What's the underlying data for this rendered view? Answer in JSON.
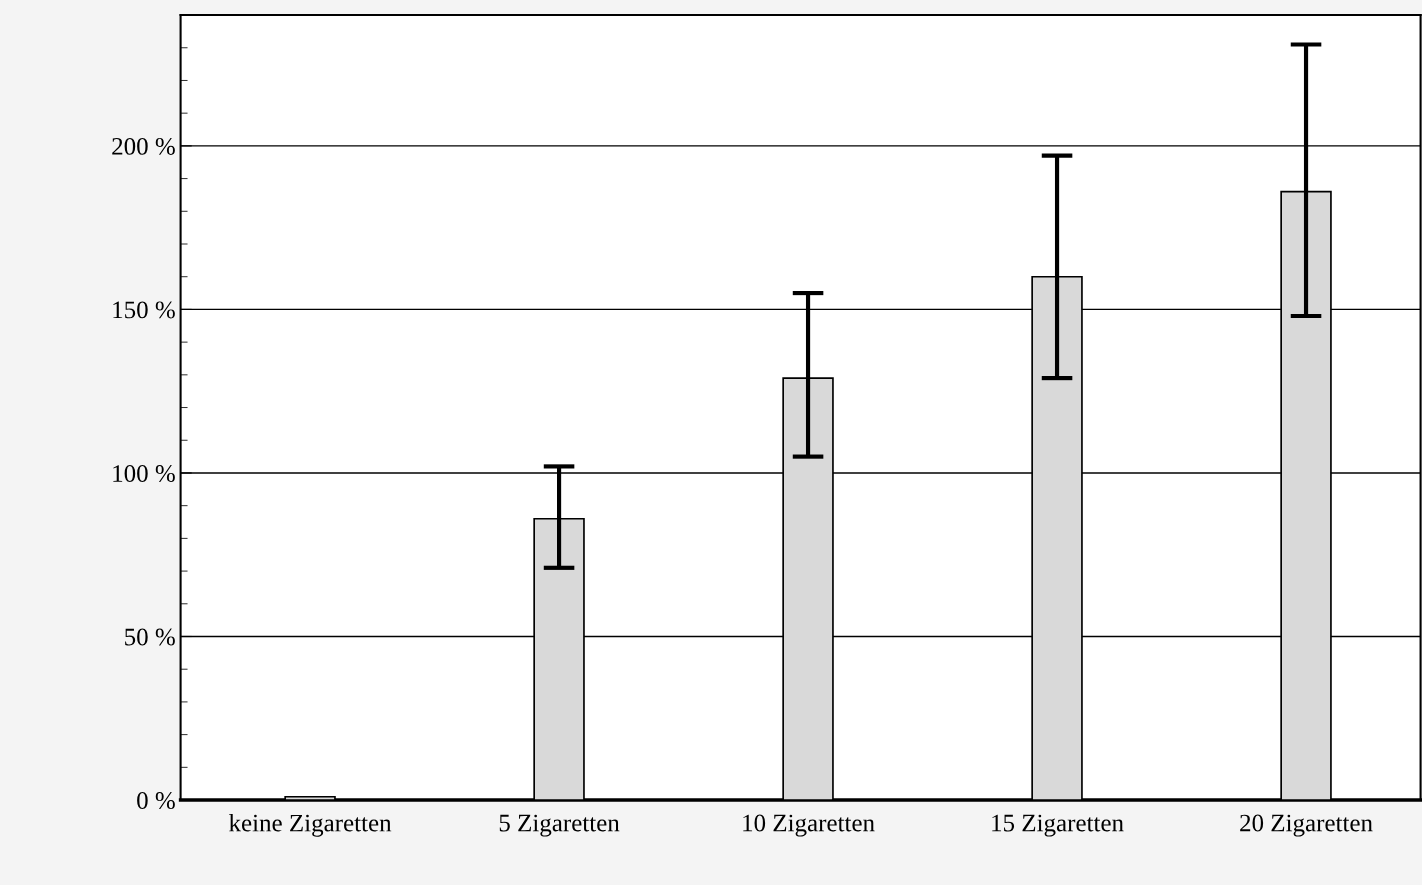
{
  "chart_data": {
    "type": "bar",
    "categories": [
      "keine Zigaretten",
      "5 Zigaretten",
      "10 Zigaretten",
      "15 Zigaretten",
      "20 Zigaretten"
    ],
    "values": [
      1,
      86,
      129,
      160,
      186
    ],
    "errors": [
      null,
      [
        71,
        102
      ],
      [
        105,
        155
      ],
      [
        129,
        197
      ],
      [
        148,
        231
      ]
    ],
    "color": "#d9d9d9",
    "ylim": [
      0,
      240
    ],
    "yticks": [
      {
        "value": 0,
        "label": "0 %"
      },
      {
        "value": 10,
        "label": null
      },
      {
        "value": 20,
        "label": null
      },
      {
        "value": 30,
        "label": null
      },
      {
        "value": 40,
        "label": null
      },
      {
        "value": 50,
        "label": "50 %"
      },
      {
        "value": 60,
        "label": null
      },
      {
        "value": 70,
        "label": null
      },
      {
        "value": 80,
        "label": null
      },
      {
        "value": 90,
        "label": null
      },
      {
        "value": 100,
        "label": "100 %"
      },
      {
        "value": 110,
        "label": null
      },
      {
        "value": 120,
        "label": null
      },
      {
        "value": 130,
        "label": null
      },
      {
        "value": 140,
        "label": null
      },
      {
        "value": 150,
        "label": "150 %"
      },
      {
        "value": 160,
        "label": null
      },
      {
        "value": 170,
        "label": null
      },
      {
        "value": 180,
        "label": null
      },
      {
        "value": 190,
        "label": null
      },
      {
        "value": 200,
        "label": "200 %"
      },
      {
        "value": 210,
        "label": null
      },
      {
        "value": 220,
        "label": null
      },
      {
        "value": 230,
        "label": null
      },
      {
        "value": 240,
        "label": null
      }
    ],
    "grid": "y"
  }
}
